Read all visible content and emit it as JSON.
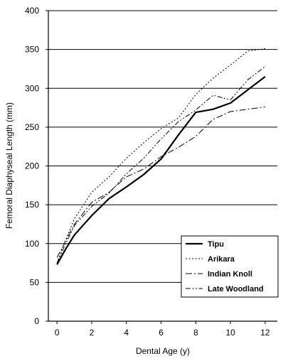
{
  "chart_data": {
    "type": "line",
    "title": "",
    "xlabel": "Dental Age (y)",
    "ylabel": "Femoral Diaphyseal Length (mm)",
    "xlim": [
      -0.5,
      12.7
    ],
    "ylim": [
      0,
      400
    ],
    "xticks": [
      0,
      2,
      4,
      6,
      8,
      10,
      12
    ],
    "yticks": [
      0,
      50,
      100,
      150,
      200,
      250,
      300,
      350,
      400
    ],
    "grid": "horizontal",
    "legend_position": "bottom-right",
    "series": [
      {
        "name": "Tipu",
        "style": "solid-thick",
        "color": "#000000",
        "x": [
          0,
          0.5,
          1,
          2,
          3,
          4,
          5,
          6,
          7,
          8,
          9,
          10,
          11,
          12
        ],
        "y": [
          73,
          93,
          111,
          136,
          158,
          173,
          189,
          209,
          240,
          269,
          273,
          281,
          298,
          315
        ]
      },
      {
        "name": "Arikara",
        "style": "dotted",
        "color": "#000000",
        "x": [
          0,
          0.5,
          1,
          2,
          3,
          4,
          5,
          6,
          7,
          8,
          9,
          10,
          11,
          12
        ],
        "y": [
          75,
          105,
          132,
          166,
          186,
          210,
          230,
          248,
          262,
          292,
          313,
          330,
          348,
          351
        ]
      },
      {
        "name": "Indian Knoll",
        "style": "dash-dot",
        "color": "#000000",
        "x": [
          0,
          1,
          2,
          3,
          4,
          5,
          6,
          7,
          8,
          9,
          10,
          11,
          12
        ],
        "y": [
          82,
          125,
          153,
          166,
          186,
          196,
          212,
          224,
          238,
          260,
          270,
          273,
          276
        ]
      },
      {
        "name": "Late Woodland",
        "style": "dash-dot-dot",
        "color": "#000000",
        "x": [
          0,
          0.5,
          1,
          2,
          3,
          4,
          5,
          6,
          7,
          8,
          9,
          10,
          11,
          12
        ],
        "y": [
          75,
          100,
          123,
          148,
          165,
          190,
          210,
          235,
          257,
          272,
          291,
          285,
          311,
          328
        ]
      }
    ]
  }
}
